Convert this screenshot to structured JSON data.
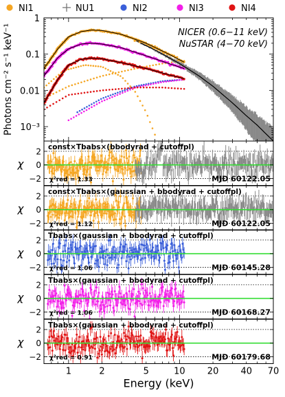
{
  "legend": [
    {
      "name": "NI1",
      "color": "#f5a623",
      "marker": "circle"
    },
    {
      "name": "NU1",
      "color": "#777777",
      "marker": "plus"
    },
    {
      "name": "NI2",
      "color": "#3a5fd9",
      "marker": "circle"
    },
    {
      "name": "NI3",
      "color": "#f21ee8",
      "marker": "circle"
    },
    {
      "name": "NI4",
      "color": "#e01414",
      "marker": "circle"
    }
  ],
  "chart_data": {
    "type": "scatter",
    "xlabel": "Energy (keV)",
    "xscale": "log",
    "xlim": [
      0.6,
      70
    ],
    "xticks": [
      1,
      2,
      5,
      10,
      20,
      40,
      70
    ],
    "main_panel": {
      "ylabel": "Photons cm⁻² s⁻¹ keV⁻¹",
      "yscale": "log",
      "ylim": [
        0.0004,
        1
      ],
      "ytick_labels": [
        "10⁻³",
        "0.01",
        "0.1",
        "1"
      ],
      "annotation_line1": "NICER (0.6−11 keV)",
      "annotation_line2": "NuSTAR (4−70 keV)",
      "series": [
        {
          "name": "NI1",
          "color": "#f5a623",
          "points": [
            [
              0.6,
              0.04
            ],
            [
              0.8,
              0.14
            ],
            [
              1.0,
              0.3
            ],
            [
              1.3,
              0.42
            ],
            [
              1.6,
              0.46
            ],
            [
              2.0,
              0.45
            ],
            [
              3,
              0.35
            ],
            [
              5,
              0.2
            ],
            [
              8,
              0.1
            ],
            [
              11,
              0.06
            ]
          ]
        },
        {
          "name": "NU1",
          "color": "#777777",
          "points": [
            [
              4,
              0.24
            ],
            [
              6,
              0.13
            ],
            [
              10,
              0.055
            ],
            [
              15,
              0.025
            ],
            [
              20,
              0.013
            ],
            [
              30,
              0.0045
            ],
            [
              40,
              0.002
            ],
            [
              50,
              0.0011
            ],
            [
              70,
              0.0004
            ]
          ]
        },
        {
          "name": "NI3",
          "color": "#f21ee8",
          "points": [
            [
              0.6,
              0.025
            ],
            [
              0.8,
              0.08
            ],
            [
              1.0,
              0.14
            ],
            [
              1.3,
              0.19
            ],
            [
              1.6,
              0.2
            ],
            [
              2,
              0.19
            ],
            [
              3,
              0.15
            ],
            [
              5,
              0.09
            ],
            [
              8,
              0.055
            ],
            [
              11,
              0.04
            ]
          ]
        },
        {
          "name": "NI4",
          "color": "#e01414",
          "points": [
            [
              0.6,
              0.0045
            ],
            [
              0.8,
              0.02
            ],
            [
              1.0,
              0.05
            ],
            [
              1.3,
              0.072
            ],
            [
              1.6,
              0.078
            ],
            [
              2,
              0.074
            ],
            [
              3,
              0.058
            ],
            [
              5,
              0.04
            ],
            [
              8,
              0.027
            ],
            [
              11,
              0.021
            ]
          ]
        }
      ],
      "model_components": [
        {
          "series": "NI1 bbody",
          "color": "#f5a623",
          "points": [
            [
              0.6,
              0.012
            ],
            [
              0.9,
              0.035
            ],
            [
              1.4,
              0.05
            ],
            [
              2,
              0.045
            ],
            [
              3,
              0.024
            ],
            [
              4,
              0.009
            ],
            [
              5,
              0.0025
            ],
            [
              6,
              0.0006
            ]
          ]
        },
        {
          "series": "NI1 cutoffpl",
          "color": "#f5a623",
          "points": [
            [
              0.6,
              0.006
            ],
            [
              1,
              0.013
            ],
            [
              2,
              0.025
            ],
            [
              4,
              0.04
            ],
            [
              7,
              0.055
            ],
            [
              11,
              0.065
            ]
          ]
        },
        {
          "series": "NI2 cutoffpl",
          "color": "#3a5fd9",
          "points": [
            [
              1.2,
              0.0025
            ],
            [
              2,
              0.006
            ],
            [
              4,
              0.013
            ],
            [
              7,
              0.018
            ],
            [
              11,
              0.02
            ]
          ]
        },
        {
          "series": "NI3 cutoffpl",
          "color": "#f21ee8",
          "points": [
            [
              1,
              0.0015
            ],
            [
              2,
              0.005
            ],
            [
              4,
              0.012
            ],
            [
              7,
              0.017
            ],
            [
              11,
              0.02
            ]
          ]
        },
        {
          "series": "NI4 cutoffpl",
          "color": "#e01414",
          "points": [
            [
              0.6,
              0.003
            ],
            [
              1,
              0.0075
            ],
            [
              2,
              0.01
            ],
            [
              4,
              0.012
            ],
            [
              7,
              0.012
            ],
            [
              11,
              0.011
            ]
          ]
        }
      ]
    },
    "residual_panels": [
      {
        "model": "const×Tbabs×(bbodyrad + cutoffpl)",
        "chi2red": "1.33",
        "mjd": "MJD 60122.05",
        "series": [
          "NI1",
          "NU1"
        ],
        "ylim": [
          -3,
          3.5
        ]
      },
      {
        "model": "const×Tbabs×(gaussian + bbodyrad + cutoffpl)",
        "chi2red": "1.12",
        "mjd": "MJD 60122.05",
        "series": [
          "NI1",
          "NU1"
        ],
        "ylim": [
          -3,
          3.5
        ]
      },
      {
        "model": "Tbabs×(gaussian + bbodyrad + cutoffpl)",
        "chi2red": "1.06",
        "mjd": "MJD 60145.28",
        "series": [
          "NI2"
        ],
        "ylim": [
          -3,
          3.5
        ]
      },
      {
        "model": "Tbabs×(gaussian + bbodyrad + cutoffpl)",
        "chi2red": "1.06",
        "mjd": "MJD 60168.27",
        "series": [
          "NI3"
        ],
        "ylim": [
          -3,
          3.5
        ]
      },
      {
        "model": "Tbabs×(gaussian + bbodyrad + cutoffpl)",
        "chi2red": "0.91",
        "mjd": "MJD 60179.68",
        "series": [
          "NI4"
        ],
        "ylim": [
          -3,
          3.5
        ]
      }
    ],
    "residual_ylabel": "χ",
    "residual_yticks": [
      -2,
      0,
      2
    ],
    "chi2_label": "χ²red ="
  }
}
